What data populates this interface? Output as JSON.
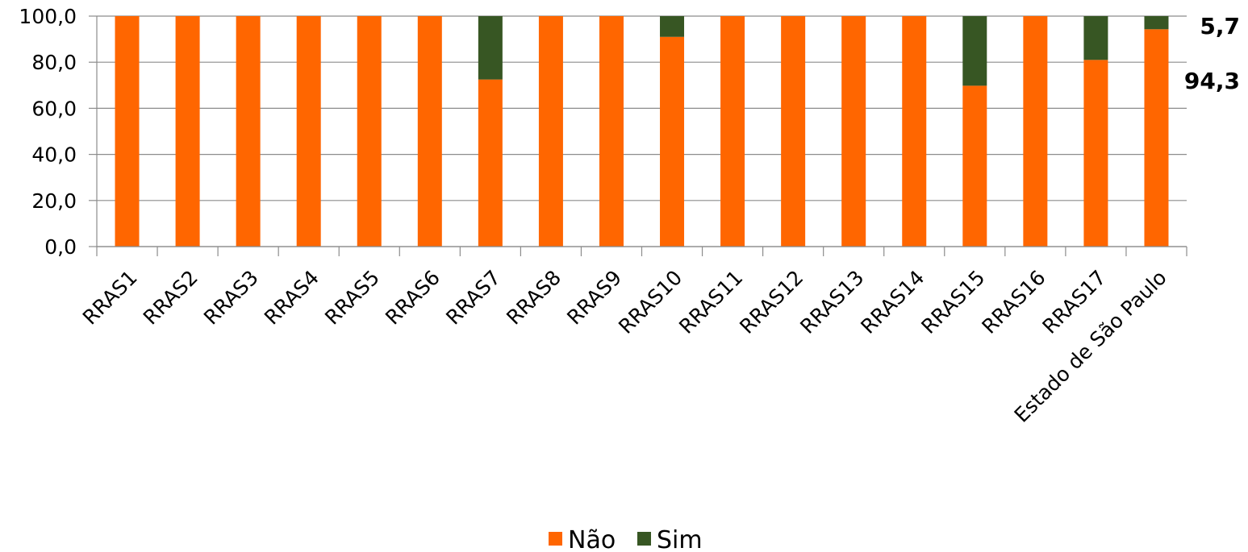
{
  "chart_data": {
    "type": "bar",
    "stacked": true,
    "categories": [
      "RRAS1",
      "RRAS2",
      "RRAS3",
      "RRAS4",
      "RRAS5",
      "RRAS6",
      "RRAS7",
      "RRAS8",
      "RRAS9",
      "RRAS10",
      "RRAS11",
      "RRAS12",
      "RRAS13",
      "RRAS14",
      "RRAS15",
      "RRAS16",
      "RRAS17",
      "Estado de São Paulo"
    ],
    "series": [
      {
        "name": "Não",
        "color": "#FF6600",
        "values": [
          100,
          100,
          100,
          100,
          100,
          100,
          72.5,
          100,
          100,
          91.0,
          100,
          100,
          100,
          100,
          69.8,
          100,
          81.0,
          94.3
        ]
      },
      {
        "name": "Sim",
        "color": "#375623",
        "values": [
          0,
          0,
          0,
          0,
          0,
          0,
          27.5,
          0,
          0,
          9.0,
          0,
          0,
          0,
          0,
          30.2,
          0,
          19.0,
          5.7
        ]
      }
    ],
    "yticks": [
      "0,0",
      "20,0",
      "40,0",
      "60,0",
      "80,0",
      "100,0"
    ],
    "ylim": [
      0,
      100
    ],
    "data_labels": [
      {
        "category": "Estado de São Paulo",
        "series": "Sim",
        "text": "5,7"
      },
      {
        "category": "Estado de São Paulo",
        "series": "Não",
        "text": "94,3"
      }
    ],
    "grid": true,
    "legend_position": "bottom"
  }
}
